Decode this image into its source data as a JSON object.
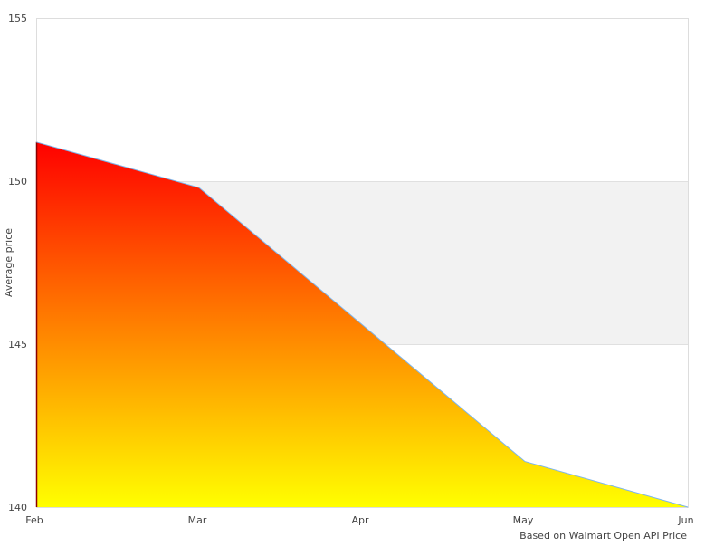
{
  "chart_data": {
    "type": "area",
    "title": "",
    "xlabel": "Based on Walmart Open API Price",
    "ylabel": "Average price",
    "categories": [
      "Feb",
      "Mar",
      "Apr",
      "May",
      "Jun"
    ],
    "series": [
      {
        "values": [
          151.2,
          149.8,
          145.6,
          141.4,
          140.0
        ]
      }
    ],
    "ylim": [
      140,
      155
    ],
    "yticks": [
      140,
      145,
      150,
      155
    ],
    "grid": true,
    "bands": [
      {
        "from": 145,
        "to": 150,
        "color": "#f2f2f2"
      }
    ],
    "colors": {
      "fill_top": "#ff0000",
      "fill_bottom": "#ffff00",
      "line": "#7cb5ec"
    }
  }
}
